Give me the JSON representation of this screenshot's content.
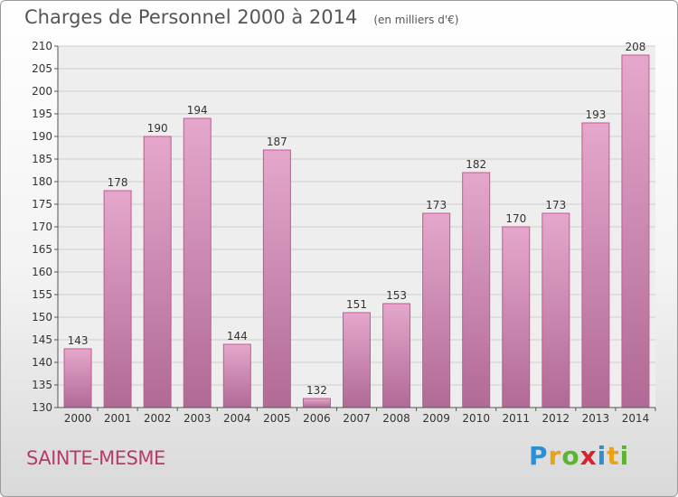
{
  "title": "Charges de Personnel 2000 à 2014",
  "subtitle": "(en milliers d'€)",
  "town": "SAINTE-MESME",
  "logo": {
    "letters": [
      "P",
      "r",
      "o",
      "x",
      "i",
      "t",
      "i"
    ],
    "colors": [
      "#2a8fd6",
      "#e8a316",
      "#5bb531",
      "#d8232a",
      "#2a8fd6",
      "#e8a316",
      "#5bb531"
    ]
  },
  "colors": {
    "bar_top": "#e5a7cc",
    "bar_bottom": "#b06a95",
    "bar_edge": "#c9578f",
    "grid": "#cfcfcf",
    "axis": "#555555"
  },
  "chart_data": {
    "type": "bar",
    "categories": [
      "2000",
      "2001",
      "2002",
      "2003",
      "2004",
      "2005",
      "2006",
      "2007",
      "2008",
      "2009",
      "2010",
      "2011",
      "2012",
      "2013",
      "2014"
    ],
    "values": [
      143,
      178,
      190,
      194,
      144,
      187,
      132,
      151,
      153,
      173,
      182,
      170,
      173,
      193,
      208
    ],
    "ylim": [
      130,
      210
    ],
    "yticks": [
      130,
      135,
      140,
      145,
      150,
      155,
      160,
      165,
      170,
      175,
      180,
      185,
      190,
      195,
      200,
      205,
      210
    ],
    "grid": true
  }
}
